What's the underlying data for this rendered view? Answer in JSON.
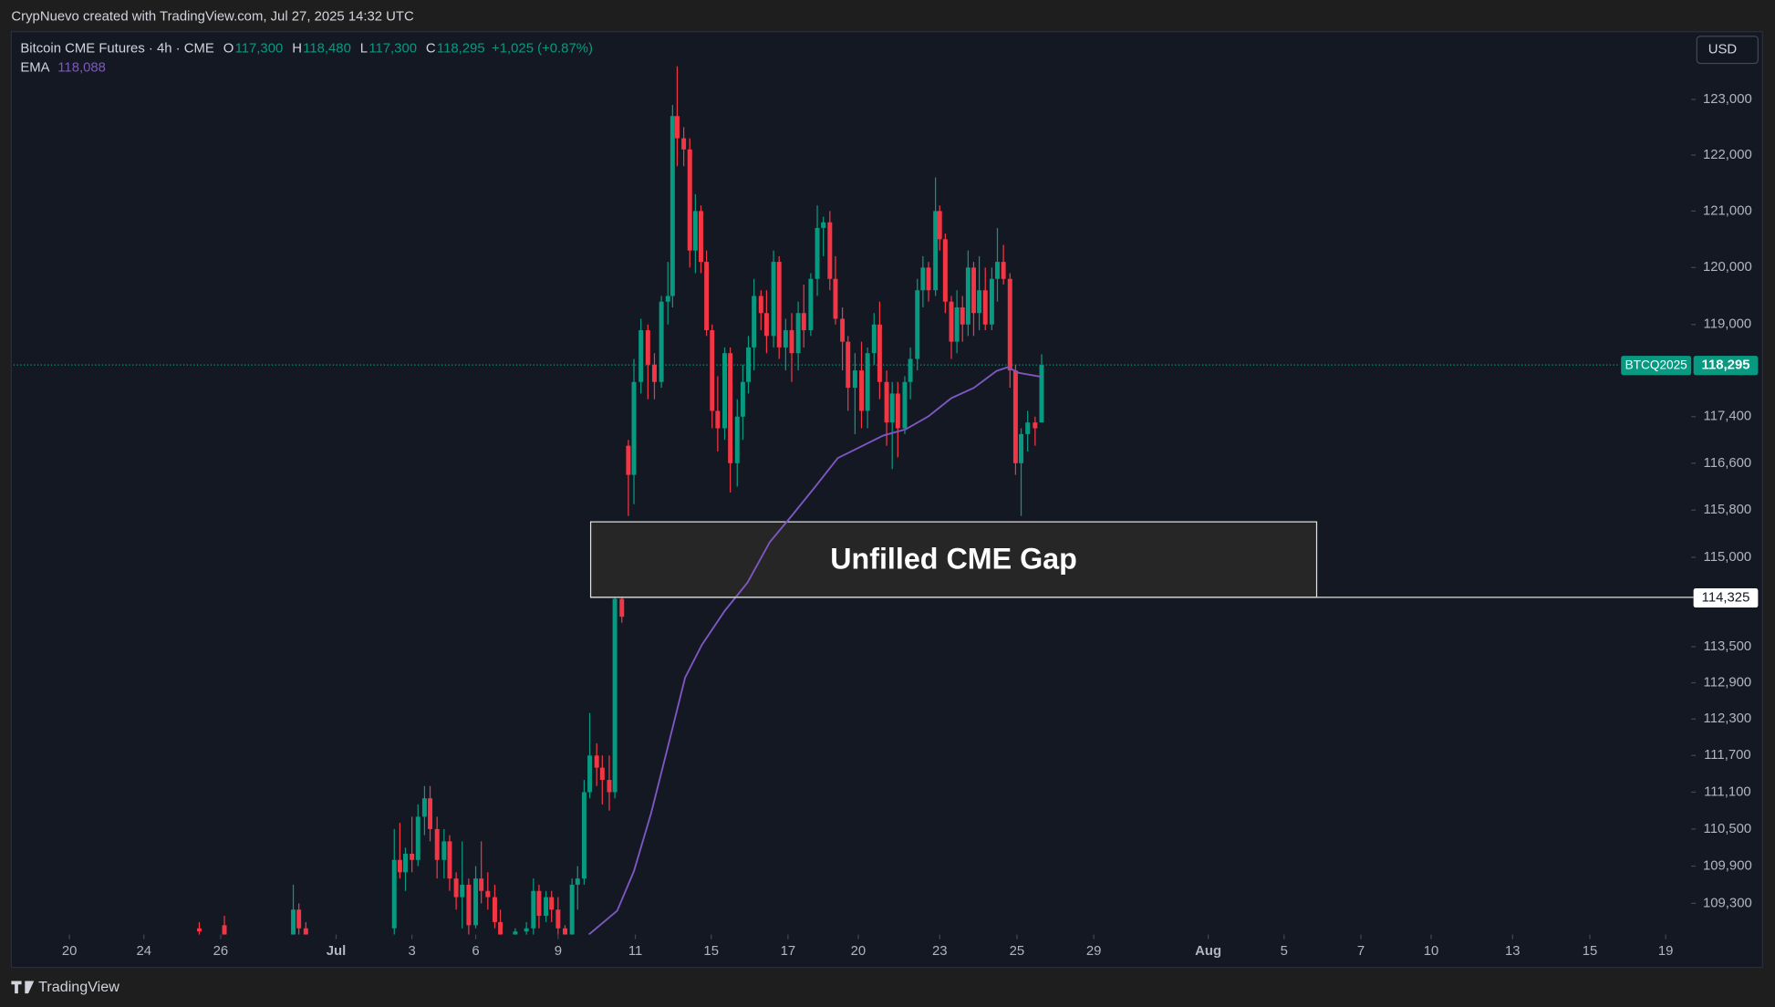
{
  "header": {
    "attribution": "CrypNuevo created with TradingView.com, Jul 27, 2025 14:32 UTC",
    "footer": "TradingView"
  },
  "chart_data": {
    "type": "candlestick",
    "title": "Bitcoin CME Futures · 4h · CME",
    "legend": [
      {
        "label": "O",
        "value": "117,300"
      },
      {
        "label": "H",
        "value": "118,480"
      },
      {
        "label": "L",
        "value": "117,300"
      },
      {
        "label": "C",
        "value": "118,295"
      }
    ],
    "change": "+1,025 (+0.87%)",
    "currency": "USD",
    "log_scale": true,
    "colors": {
      "up": "#089981",
      "down": "#f23645"
    },
    "x": [
      39.9,
      45.3,
      60.1,
      61.3,
      62.8,
      81.8,
      83.0,
      84.2,
      85.6,
      86.9,
      88.3,
      89.5,
      91.0,
      92.5,
      93.7,
      95.1,
      96.4,
      97.8,
      99.3,
      100.5,
      101.9,
      103.4,
      104.6,
      107.8,
      110.2,
      111.7,
      112.9,
      114.4,
      115.6,
      117.0,
      118.5,
      120.0,
      121.2,
      122.6,
      123.8,
      125.3,
      126.5,
      128.0,
      129.2,
      130.7,
      132.1,
      133.3,
      134.8,
      136.3,
      137.7,
      139.2,
      140.6,
      141.6,
      142.6,
      144.0,
      145.3,
      146.5,
      147.7,
      148.9,
      150.1,
      151.3,
      152.8,
      154.0,
      155.5,
      156.7,
      157.9,
      159.1,
      160.6,
      161.8,
      163.3,
      164.5,
      165.9,
      167.2,
      168.6,
      169.8,
      171.3,
      172.7,
      174.0,
      175.4,
      176.6,
      178.1,
      179.3,
      180.8,
      182.2,
      183.5,
      184.9,
      186.1,
      187.6,
      188.8,
      190.0,
      191.5,
      192.7,
      194.2,
      195.4,
      196.6,
      198.1,
      199.0,
      200.2,
      201.5,
      202.7,
      203.9,
      205.1,
      206.3,
      207.5,
      208.8,
      210.2,
      211.4,
      212.7,
      214.1,
      215.3,
      216.5,
      217.9,
      219.5,
      220.9
    ],
    "ohlc": [
      [
        108900,
        109000,
        108700,
        108850
      ],
      [
        108950,
        109100,
        108700,
        108800
      ],
      [
        108800,
        109600,
        108700,
        109200
      ],
      [
        109200,
        109300,
        108800,
        108900
      ],
      [
        108900,
        109000,
        108700,
        108800
      ],
      [
        108900,
        110500,
        108800,
        110000
      ],
      [
        110000,
        110600,
        109700,
        109800
      ],
      [
        109800,
        110200,
        109500,
        110100
      ],
      [
        110100,
        110700,
        109800,
        110000
      ],
      [
        110000,
        110900,
        109900,
        110700
      ],
      [
        110700,
        111200,
        110400,
        111000
      ],
      [
        111000,
        111200,
        110300,
        110500
      ],
      [
        110500,
        110700,
        109700,
        110000
      ],
      [
        110000,
        110500,
        109700,
        110300
      ],
      [
        110300,
        110400,
        109500,
        109700
      ],
      [
        109700,
        109800,
        109200,
        109400
      ],
      [
        109400,
        110300,
        108900,
        109600
      ],
      [
        109600,
        109700,
        108800,
        108950
      ],
      [
        108950,
        109900,
        108900,
        109700
      ],
      [
        109700,
        110300,
        109300,
        109500
      ],
      [
        109500,
        109800,
        109200,
        109400
      ],
      [
        109400,
        109600,
        108900,
        109000
      ],
      [
        109000,
        109200,
        108700,
        108800
      ],
      [
        108800,
        108900,
        108700,
        108850
      ],
      [
        108850,
        109000,
        108700,
        108900
      ],
      [
        108900,
        109700,
        108800,
        109500
      ],
      [
        109500,
        109600,
        108900,
        109100
      ],
      [
        109100,
        109500,
        109000,
        109400
      ],
      [
        109400,
        109500,
        109000,
        109200
      ],
      [
        109200,
        109400,
        108800,
        108900
      ],
      [
        108900,
        108950,
        108700,
        108800
      ],
      [
        108800,
        109700,
        108700,
        109600
      ],
      [
        109600,
        109900,
        109200,
        109700
      ],
      [
        109700,
        111300,
        109600,
        111100
      ],
      [
        111100,
        112400,
        111000,
        111700
      ],
      [
        111700,
        111900,
        111200,
        111500
      ],
      [
        111500,
        111700,
        110900,
        111300
      ],
      [
        111300,
        111700,
        110800,
        111100
      ],
      [
        111100,
        114325,
        111000,
        114300
      ],
      [
        114300,
        114325,
        113900,
        114000
      ],
      [
        116900,
        117000,
        115700,
        116400
      ],
      [
        116400,
        118400,
        115900,
        118000
      ],
      [
        118000,
        119100,
        117800,
        118900
      ],
      [
        118900,
        119000,
        117700,
        118300
      ],
      [
        118300,
        118500,
        117700,
        118000
      ],
      [
        118000,
        119500,
        117900,
        119400
      ],
      [
        119400,
        120100,
        119000,
        119500
      ],
      [
        119500,
        122900,
        119300,
        122700
      ],
      [
        122700,
        123600,
        121800,
        122300
      ],
      [
        122300,
        122500,
        121800,
        122100
      ],
      [
        122100,
        122300,
        120000,
        120300
      ],
      [
        120300,
        121300,
        119900,
        121000
      ],
      [
        121000,
        121100,
        119900,
        120100
      ],
      [
        120100,
        120300,
        118800,
        118900
      ],
      [
        118900,
        119000,
        117200,
        117500
      ],
      [
        117500,
        118100,
        116800,
        117200
      ],
      [
        117200,
        118600,
        117000,
        118500
      ],
      [
        118500,
        118600,
        116100,
        116600
      ],
      [
        116600,
        117700,
        116200,
        117400
      ],
      [
        117400,
        118300,
        117000,
        118000
      ],
      [
        118000,
        118800,
        117800,
        118600
      ],
      [
        118600,
        119800,
        118200,
        119500
      ],
      [
        119500,
        119600,
        118900,
        119200
      ],
      [
        119200,
        119600,
        118500,
        118800
      ],
      [
        118800,
        120300,
        118600,
        120100
      ],
      [
        120100,
        120200,
        118400,
        118600
      ],
      [
        118600,
        119100,
        118200,
        118900
      ],
      [
        118900,
        119200,
        118000,
        118500
      ],
      [
        118500,
        119400,
        118200,
        119200
      ],
      [
        119200,
        119700,
        118600,
        118900
      ],
      [
        118900,
        119900,
        118800,
        119800
      ],
      [
        119800,
        121100,
        119500,
        120700
      ],
      [
        120700,
        120900,
        120200,
        120800
      ],
      [
        120800,
        121000,
        119600,
        119800
      ],
      [
        119800,
        120200,
        119000,
        119100
      ],
      [
        119100,
        119300,
        118200,
        118700
      ],
      [
        118700,
        118800,
        117500,
        117900
      ],
      [
        117900,
        118500,
        117100,
        118200
      ],
      [
        118200,
        118700,
        117200,
        117500
      ],
      [
        117500,
        118600,
        117200,
        118500
      ],
      [
        118500,
        119200,
        118300,
        119000
      ],
      [
        119000,
        119400,
        117700,
        118000
      ],
      [
        118000,
        118200,
        116900,
        117300
      ],
      [
        117300,
        118000,
        116500,
        117800
      ],
      [
        117800,
        118000,
        116700,
        117200
      ],
      [
        117200,
        118100,
        117100,
        118000
      ],
      [
        118000,
        118600,
        117700,
        118400
      ],
      [
        118400,
        119800,
        118200,
        119600
      ],
      [
        119600,
        120200,
        119300,
        120000
      ],
      [
        120000,
        120100,
        119400,
        119600
      ],
      [
        119600,
        121600,
        119500,
        121000
      ],
      [
        121000,
        121100,
        120300,
        120500
      ],
      [
        120500,
        120600,
        119200,
        119400
      ],
      [
        119400,
        119500,
        118400,
        118700
      ],
      [
        118700,
        119600,
        118500,
        119300
      ],
      [
        119300,
        119500,
        118700,
        119000
      ],
      [
        119000,
        120300,
        118800,
        120000
      ],
      [
        120000,
        120100,
        118800,
        119200
      ],
      [
        119200,
        120200,
        118900,
        119600
      ],
      [
        119600,
        120000,
        118900,
        119000
      ],
      [
        119000,
        120000,
        118900,
        119800
      ],
      [
        119800,
        120700,
        119400,
        120100
      ],
      [
        120100,
        120400,
        119700,
        119800
      ],
      [
        119800,
        119900,
        117900,
        118200
      ],
      [
        118200,
        118300,
        116400,
        116600
      ],
      [
        116600,
        117200,
        115700,
        117100
      ],
      [
        117100,
        117500,
        116800,
        117300
      ],
      [
        117300,
        117400,
        116900,
        117200
      ],
      [
        117300,
        118480,
        117300,
        118295
      ]
    ],
    "ema": {
      "name": "EMA",
      "value_label": "118,088",
      "color": "#7e57c2",
      "x": [
        123.6,
        129.7,
        133.3,
        137.0,
        140.6,
        144.3,
        147.9,
        152.8,
        157.7,
        162.5,
        167.4,
        172.3,
        177.1,
        182.0,
        186.9,
        191.7,
        196.6,
        201.5,
        206.3,
        211.2,
        213.6,
        216.0,
        220.9
      ],
      "values": [
        108800,
        109182,
        109819,
        110760,
        111845,
        112987,
        113530,
        114098,
        114573,
        115258,
        115722,
        116203,
        116688,
        116882,
        117076,
        117182,
        117407,
        117720,
        117896,
        118190,
        118255,
        118158,
        118088
      ]
    },
    "last_price": {
      "symbol": "BTCQ2025",
      "value": 118295,
      "label": "118,295",
      "color": "#089981"
    },
    "gap": {
      "text": "Unfilled CME Gap",
      "top": 115600,
      "bottom": 114325,
      "bottom_label": "114,325",
      "xlim": [
        124,
        280
      ]
    },
    "xlim": [
      0,
      360
    ],
    "ylim": [
      108800,
      124230
    ],
    "xticks": [
      {
        "value": 12,
        "label": "20"
      },
      {
        "value": 28,
        "label": "24"
      },
      {
        "value": 44.5,
        "label": "26"
      },
      {
        "value": 69.3,
        "label": "Jul"
      },
      {
        "value": 85.6,
        "label": "3"
      },
      {
        "value": 99.3,
        "label": "6"
      },
      {
        "value": 117,
        "label": "9"
      },
      {
        "value": 133.6,
        "label": "11"
      },
      {
        "value": 149.9,
        "label": "15"
      },
      {
        "value": 166.4,
        "label": "17"
      },
      {
        "value": 181.5,
        "label": "20"
      },
      {
        "value": 199,
        "label": "23"
      },
      {
        "value": 215.6,
        "label": "25"
      },
      {
        "value": 232.1,
        "label": "29"
      },
      {
        "value": 256.7,
        "label": "Aug"
      },
      {
        "value": 273,
        "label": "5"
      },
      {
        "value": 289.5,
        "label": "7"
      },
      {
        "value": 304.6,
        "label": "10"
      },
      {
        "value": 322.1,
        "label": "13"
      },
      {
        "value": 338.7,
        "label": "15"
      },
      {
        "value": 355,
        "label": "19"
      }
    ],
    "yticks": [
      {
        "value": 109300,
        "label": "109,300"
      },
      {
        "value": 109900,
        "label": "109,900"
      },
      {
        "value": 110500,
        "label": "110,500"
      },
      {
        "value": 111100,
        "label": "111,100"
      },
      {
        "value": 111700,
        "label": "111,700"
      },
      {
        "value": 112300,
        "label": "112,300"
      },
      {
        "value": 112900,
        "label": "112,900"
      },
      {
        "value": 113500,
        "label": "113,500"
      },
      {
        "value": 115000,
        "label": "115,000"
      },
      {
        "value": 115800,
        "label": "115,800"
      },
      {
        "value": 116600,
        "label": "116,600"
      },
      {
        "value": 117400,
        "label": "117,400"
      },
      {
        "value": 119000,
        "label": "119,000"
      },
      {
        "value": 120000,
        "label": "120,000"
      },
      {
        "value": 121000,
        "label": "121,000"
      },
      {
        "value": 122000,
        "label": "122,000"
      },
      {
        "value": 123000,
        "label": "123,000"
      }
    ]
  }
}
